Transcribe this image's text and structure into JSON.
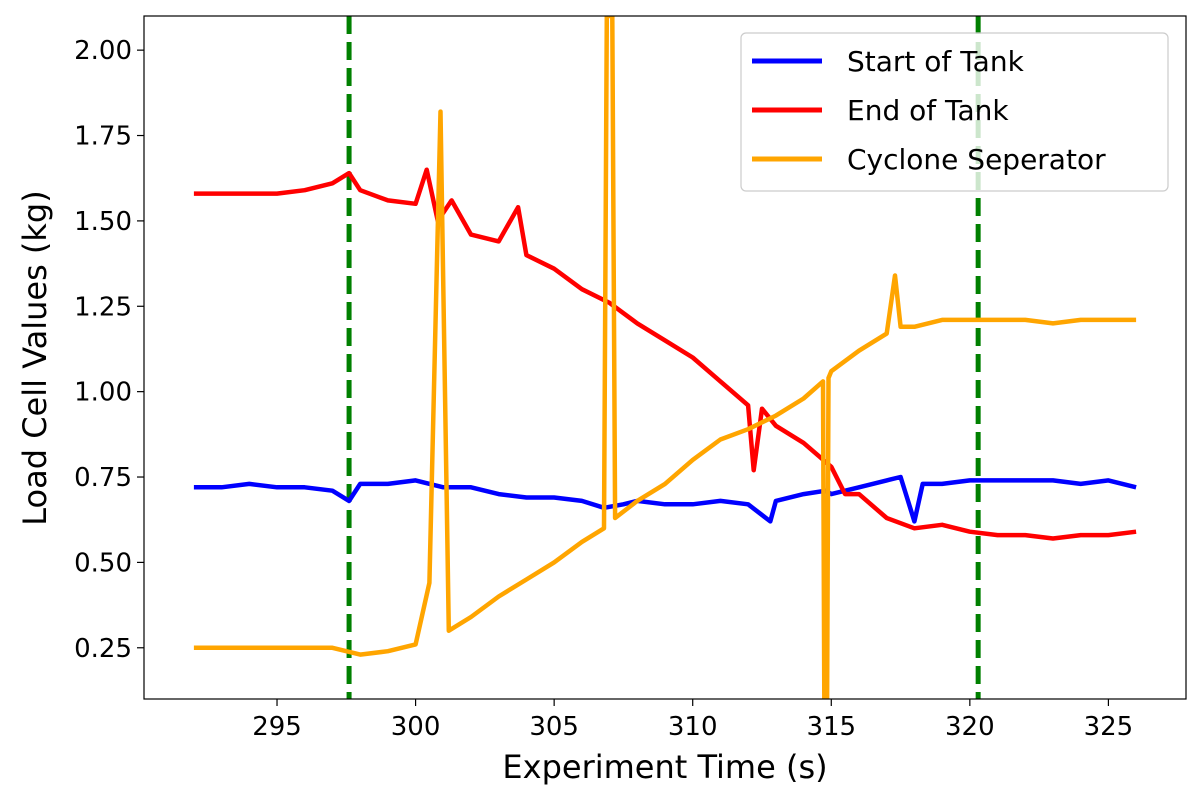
{
  "chart_data": {
    "type": "line",
    "title": "",
    "xlabel": "Experiment Time (s)",
    "ylabel": "Load Cell Values (kg)",
    "xlim": [
      290.2,
      327.8
    ],
    "ylim": [
      0.1,
      2.1
    ],
    "xticks": [
      295,
      300,
      305,
      310,
      315,
      320,
      325
    ],
    "xtick_labels": [
      "295",
      "300",
      "305",
      "310",
      "315",
      "320",
      "325"
    ],
    "yticks": [
      0.25,
      0.5,
      0.75,
      1.0,
      1.25,
      1.5,
      1.75,
      2.0
    ],
    "ytick_labels": [
      "0.25",
      "0.50",
      "0.75",
      "1.00",
      "1.25",
      "1.50",
      "1.75",
      "2.00"
    ],
    "grid": false,
    "legend": {
      "placement": "top-right",
      "entries": [
        "Start of Tank",
        "End of Tank",
        "Cyclone Seperator"
      ]
    },
    "vlines": [
      {
        "x": 297.6,
        "color": "#008000",
        "style": "dashed"
      },
      {
        "x": 320.3,
        "color": "#008000",
        "style": "dashed"
      }
    ],
    "series": [
      {
        "name": "Start of Tank",
        "color": "#0000ff",
        "points": [
          [
            292,
            0.72
          ],
          [
            293,
            0.72
          ],
          [
            294,
            0.73
          ],
          [
            295,
            0.72
          ],
          [
            296,
            0.72
          ],
          [
            297,
            0.71
          ],
          [
            297.6,
            0.68
          ],
          [
            298,
            0.73
          ],
          [
            299,
            0.73
          ],
          [
            300,
            0.74
          ],
          [
            301,
            0.72
          ],
          [
            302,
            0.72
          ],
          [
            303,
            0.7
          ],
          [
            304,
            0.69
          ],
          [
            305,
            0.69
          ],
          [
            306,
            0.68
          ],
          [
            306.8,
            0.66
          ],
          [
            307.5,
            0.67
          ],
          [
            308,
            0.68
          ],
          [
            309,
            0.67
          ],
          [
            310,
            0.67
          ],
          [
            311,
            0.68
          ],
          [
            312,
            0.67
          ],
          [
            312.8,
            0.62
          ],
          [
            313,
            0.68
          ],
          [
            314,
            0.7
          ],
          [
            314.8,
            0.71
          ],
          [
            315,
            0.7
          ],
          [
            316,
            0.72
          ],
          [
            317,
            0.74
          ],
          [
            317.5,
            0.75
          ],
          [
            318,
            0.62
          ],
          [
            318.3,
            0.73
          ],
          [
            319,
            0.73
          ],
          [
            320,
            0.74
          ],
          [
            321,
            0.74
          ],
          [
            322,
            0.74
          ],
          [
            323,
            0.74
          ],
          [
            324,
            0.73
          ],
          [
            325,
            0.74
          ],
          [
            326,
            0.72
          ]
        ]
      },
      {
        "name": "End of Tank",
        "color": "#ff0000",
        "points": [
          [
            292,
            1.58
          ],
          [
            293,
            1.58
          ],
          [
            294,
            1.58
          ],
          [
            295,
            1.58
          ],
          [
            296,
            1.59
          ],
          [
            297,
            1.61
          ],
          [
            297.6,
            1.64
          ],
          [
            298,
            1.59
          ],
          [
            299,
            1.56
          ],
          [
            300,
            1.55
          ],
          [
            300.4,
            1.65
          ],
          [
            300.8,
            1.5
          ],
          [
            301.3,
            1.56
          ],
          [
            302,
            1.46
          ],
          [
            303,
            1.44
          ],
          [
            303.7,
            1.54
          ],
          [
            304,
            1.4
          ],
          [
            305,
            1.36
          ],
          [
            306,
            1.3
          ],
          [
            307,
            1.26
          ],
          [
            308,
            1.2
          ],
          [
            309,
            1.15
          ],
          [
            310,
            1.1
          ],
          [
            311,
            1.03
          ],
          [
            312,
            0.96
          ],
          [
            312.2,
            0.77
          ],
          [
            312.5,
            0.95
          ],
          [
            313,
            0.9
          ],
          [
            314,
            0.85
          ],
          [
            315,
            0.78
          ],
          [
            315.5,
            0.7
          ],
          [
            316,
            0.7
          ],
          [
            317,
            0.63
          ],
          [
            318,
            0.6
          ],
          [
            319,
            0.61
          ],
          [
            320,
            0.59
          ],
          [
            321,
            0.58
          ],
          [
            322,
            0.58
          ],
          [
            323,
            0.57
          ],
          [
            324,
            0.58
          ],
          [
            325,
            0.58
          ],
          [
            326,
            0.59
          ]
        ]
      },
      {
        "name": "Cyclone Seperator",
        "color": "#ffa500",
        "points": [
          [
            292,
            0.25
          ],
          [
            293,
            0.25
          ],
          [
            294,
            0.25
          ],
          [
            295,
            0.25
          ],
          [
            296,
            0.25
          ],
          [
            297,
            0.25
          ],
          [
            298,
            0.23
          ],
          [
            299,
            0.24
          ],
          [
            300,
            0.26
          ],
          [
            300.5,
            0.44
          ],
          [
            300.9,
            1.82
          ],
          [
            301.2,
            0.3
          ],
          [
            302,
            0.34
          ],
          [
            303,
            0.4
          ],
          [
            304,
            0.45
          ],
          [
            305,
            0.5
          ],
          [
            306,
            0.56
          ],
          [
            306.8,
            0.6
          ],
          [
            306.9,
            2.1
          ],
          [
            307.1,
            2.1
          ],
          [
            307.2,
            0.63
          ],
          [
            308,
            0.68
          ],
          [
            309,
            0.73
          ],
          [
            310,
            0.8
          ],
          [
            311,
            0.86
          ],
          [
            312,
            0.89
          ],
          [
            313,
            0.93
          ],
          [
            314,
            0.98
          ],
          [
            314.7,
            1.03
          ],
          [
            314.75,
            0.1
          ],
          [
            314.85,
            0.1
          ],
          [
            314.9,
            1.04
          ],
          [
            315,
            1.06
          ],
          [
            316,
            1.12
          ],
          [
            317,
            1.17
          ],
          [
            317.3,
            1.34
          ],
          [
            317.5,
            1.19
          ],
          [
            318,
            1.19
          ],
          [
            319,
            1.21
          ],
          [
            320,
            1.21
          ],
          [
            321,
            1.21
          ],
          [
            322,
            1.21
          ],
          [
            323,
            1.2
          ],
          [
            324,
            1.21
          ],
          [
            325,
            1.21
          ],
          [
            326,
            1.21
          ]
        ]
      }
    ]
  }
}
